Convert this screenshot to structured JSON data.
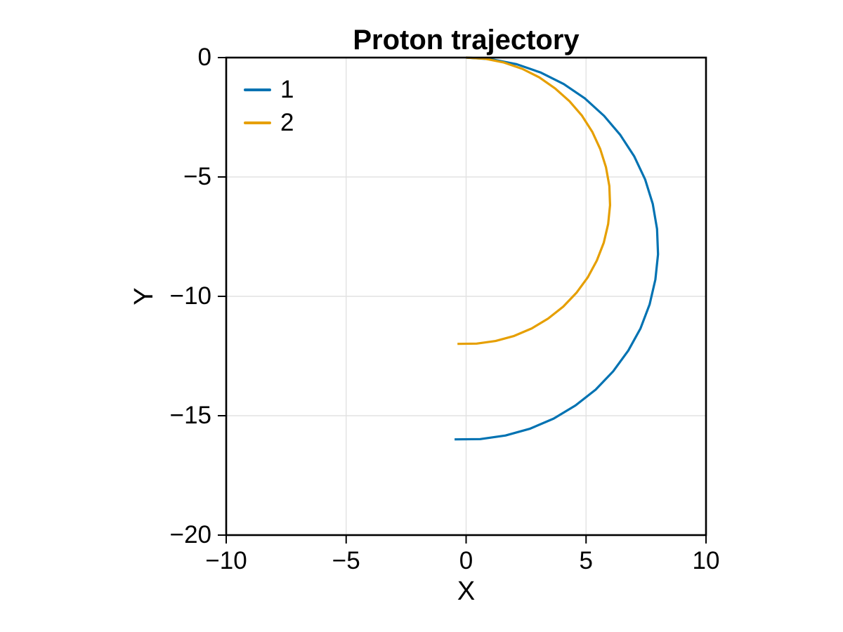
{
  "chart_data": {
    "type": "line",
    "title": "Proton trajectory",
    "xlabel": "X",
    "ylabel": "Y",
    "xlim": [
      -10,
      10
    ],
    "ylim": [
      -20,
      0
    ],
    "grid": true,
    "grid_color": "#e2e2e2",
    "axis_color": "#000000",
    "background": "#ffffff",
    "legend_position": "top-left-inside",
    "xticks": {
      "values": [
        -10,
        -5,
        0,
        5,
        10
      ],
      "labels": [
        "−10",
        "−5",
        "0",
        "5",
        "10"
      ]
    },
    "yticks": {
      "values": [
        0,
        -5,
        -10,
        -15,
        -20
      ],
      "labels": [
        "0",
        "−5",
        "−10",
        "−15",
        "−20"
      ]
    },
    "series": [
      {
        "name": "1",
        "color": "#0072B2",
        "shape": "circular arc, radius 8, center (0,-8), start (0,0) end (-0.48,-16)",
        "x": [
          0,
          1.06,
          2.11,
          3.12,
          4.07,
          4.95,
          5.75,
          6.42,
          7.01,
          7.46,
          7.78,
          7.96,
          8.0,
          7.89,
          7.65,
          7.27,
          6.76,
          6.13,
          5.4,
          4.56,
          3.65,
          2.67,
          1.64,
          0.59,
          -0.48
        ],
        "y": [
          0,
          -0.07,
          -0.28,
          -0.63,
          -1.11,
          -1.71,
          -2.44,
          -3.23,
          -4.14,
          -5.1,
          -6.13,
          -7.18,
          -8.24,
          -9.3,
          -10.34,
          -11.34,
          -12.27,
          -13.14,
          -13.91,
          -14.57,
          -15.12,
          -15.54,
          -15.83,
          -15.98,
          -15.99
        ]
      },
      {
        "name": "2",
        "color": "#E69F00",
        "shape": "circular arc, radius 6, center (0,-6), start (0,0) end (-0.36,-12)",
        "x": [
          0,
          0.8,
          1.58,
          2.34,
          3.05,
          3.71,
          4.31,
          4.82,
          5.26,
          5.59,
          5.83,
          5.97,
          6.0,
          5.92,
          5.74,
          5.45,
          5.07,
          4.6,
          4.05,
          3.42,
          2.74,
          2.0,
          1.23,
          0.44,
          -0.36
        ],
        "y": [
          0,
          -0.05,
          -0.21,
          -0.47,
          -0.83,
          -1.29,
          -1.83,
          -2.42,
          -3.11,
          -3.83,
          -4.59,
          -5.38,
          -6.18,
          -6.97,
          -7.75,
          -8.5,
          -9.21,
          -9.85,
          -10.43,
          -10.93,
          -11.34,
          -11.66,
          -11.87,
          -11.98,
          -11.99
        ]
      }
    ]
  }
}
